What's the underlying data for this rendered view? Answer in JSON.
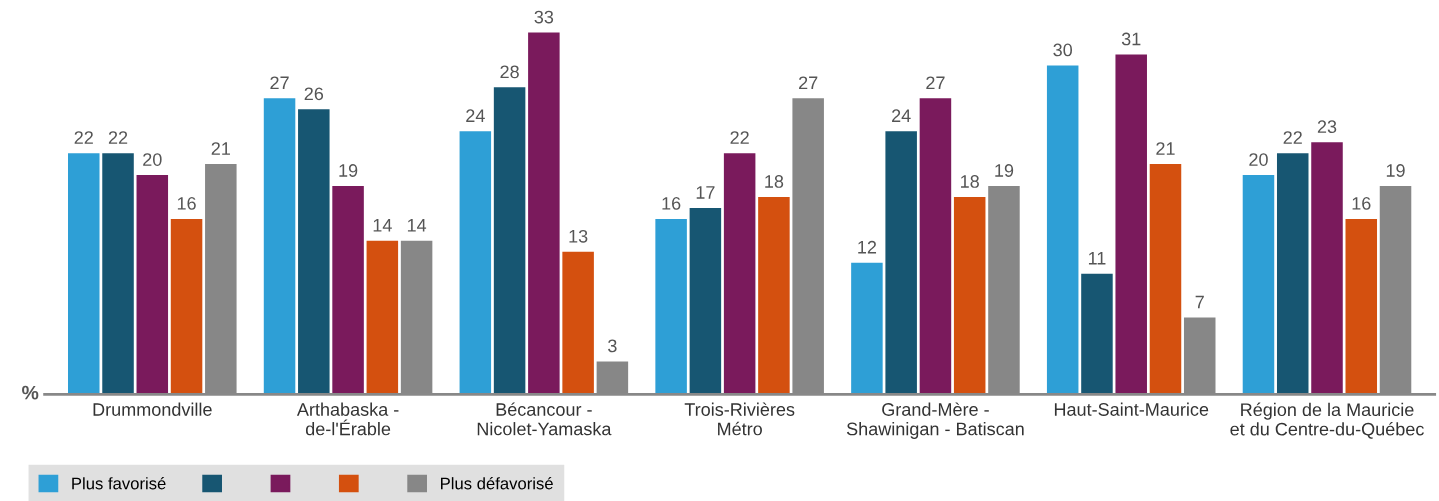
{
  "chart_data": {
    "type": "bar",
    "ylabel": "%",
    "data_labels": true,
    "legend": "bottom left",
    "grid": false,
    "categories": [
      "Drummondville",
      "Arthabaska -\nde-l'Érable",
      "Bécancour -\nNicolet-Yamaska",
      "Trois-Rivières\nMétro",
      "Grand-Mère -\nShawinigan - Batiscan",
      "Haut-Saint-Maurice",
      "Région de la Mauricie\net du Centre-du-Québec"
    ],
    "series": [
      {
        "name": "Plus favorisé",
        "color": "#2e9fd6",
        "values": [
          22,
          27,
          24,
          16,
          12,
          30,
          20
        ]
      },
      {
        "color": "#175672",
        "values": [
          22,
          26,
          28,
          17,
          24,
          11,
          22
        ]
      },
      {
        "color": "#7a1a5c",
        "values": [
          20,
          19,
          33,
          22,
          27,
          31,
          23
        ]
      },
      {
        "color": "#d4500f",
        "values": [
          16,
          14,
          13,
          18,
          18,
          21,
          16
        ]
      },
      {
        "name": "Plus défavorisé",
        "color": "#878787",
        "values": [
          21,
          14,
          3,
          27,
          19,
          7,
          19
        ]
      }
    ]
  }
}
